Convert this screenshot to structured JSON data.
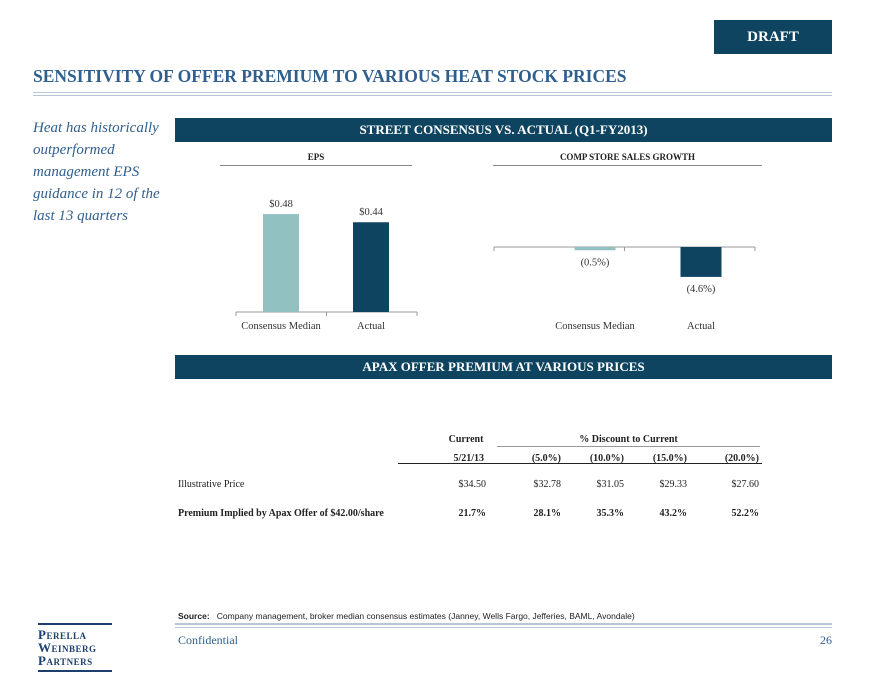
{
  "draft_label": "DRAFT",
  "title": "SENSITIVITY OF OFFER PREMIUM TO VARIOUS HEAT STOCK PRICES",
  "sidebar_note": "Heat has historically outperformed management EPS guidance in 12 of the last 13 quarters",
  "banner1": "STREET CONSENSUS VS. ACTUAL (Q1-FY2013)",
  "banner2": "APAX OFFER PREMIUM AT VARIOUS PRICES",
  "colors": {
    "navy": "#0f4460",
    "teal": "#91c1c1",
    "title_blue": "#2f5f8f"
  },
  "chart_data": [
    {
      "type": "bar",
      "title": "EPS",
      "categories": [
        "Consensus Median",
        "Actual"
      ],
      "values": [
        0.48,
        0.44
      ],
      "labels": [
        "$0.48",
        "$0.44"
      ],
      "colors": [
        "#91c1c1",
        "#0f4460"
      ]
    },
    {
      "type": "bar",
      "title": "COMP STORE SALES GROWTH",
      "categories": [
        "Consensus Median",
        "Actual"
      ],
      "values": [
        -0.5,
        -4.6
      ],
      "labels": [
        "(0.5%)",
        "(4.6%)"
      ],
      "colors": [
        "#91c1c1",
        "#0f4460"
      ]
    }
  ],
  "table": {
    "current_header": "Current",
    "discount_header": "% Discount to Current",
    "columns": [
      "5/21/13",
      "(5.0%)",
      "(10.0%)",
      "(15.0%)",
      "(20.0%)"
    ],
    "rows": [
      {
        "label": "Illustrative Price",
        "values": [
          "$34.50",
          "$32.78",
          "$31.05",
          "$29.33",
          "$27.60"
        ],
        "bold": false
      },
      {
        "label": "Premium Implied by Apax Offer of $42.00/share",
        "values": [
          "21.7%",
          "28.1%",
          "35.3%",
          "43.2%",
          "52.2%"
        ],
        "bold": true
      }
    ]
  },
  "footer": {
    "source_label": "Source:",
    "source_text": "Company management, broker median consensus estimates (Janney, Wells Fargo, Jefferies, BAML, Avondale)",
    "confidential": "Confidential",
    "page": "26",
    "logo": [
      "Perella",
      "Weinberg",
      "Partners"
    ]
  }
}
